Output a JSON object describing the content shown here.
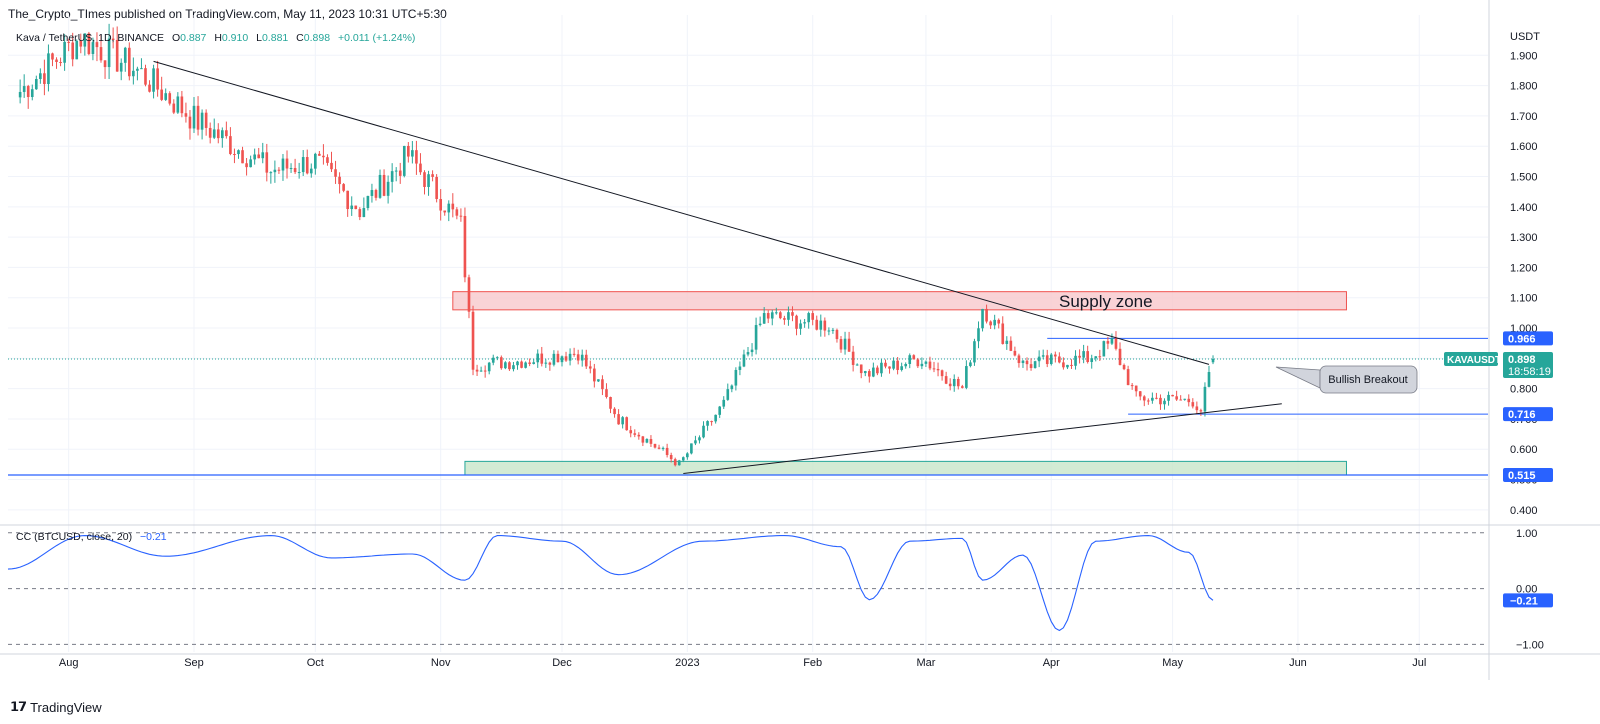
{
  "header": {
    "publisher": "The_Crypto_TImes published on TradingView.com, May 11, 2023 10:31 UTC+5:30"
  },
  "legend": {
    "symbol": "Kava / TetherUS, 1D, BINANCE",
    "o_label": "O",
    "o": "0.887",
    "h_label": "H",
    "h": "0.910",
    "l_label": "L",
    "l": "0.881",
    "c_label": "C",
    "c": "0.898",
    "change": "+0.011 (+1.24%)",
    "indicator": "CC (BTCUSD, close, 20)",
    "indicator_value": "−0.21"
  },
  "price_axis": {
    "unit": "USDT",
    "ticks": [
      "1.900",
      "1.800",
      "1.700",
      "1.600",
      "1.500",
      "1.400",
      "1.300",
      "1.200",
      "1.100",
      "1.000",
      "0.900",
      "0.800",
      "0.700",
      "0.600",
      "0.500",
      "0.400"
    ],
    "tick_values": [
      1.9,
      1.8,
      1.7,
      1.6,
      1.5,
      1.4,
      1.3,
      1.2,
      1.1,
      1.0,
      0.9,
      0.8,
      0.7,
      0.6,
      0.5,
      0.4
    ],
    "badges": {
      "level_966": "0.966",
      "symbol": "KAVAUSDT",
      "last": "0.898",
      "countdown": "18:58:19",
      "level_716": "0.716",
      "level_515": "0.515"
    }
  },
  "indicator_axis": {
    "ticks": [
      "1.00",
      "0.00",
      "−1.00"
    ],
    "tick_values": [
      1,
      0,
      -1
    ],
    "current": "−0.21"
  },
  "time_axis": {
    "labels": [
      "Aug",
      "Sep",
      "Oct",
      "Nov",
      "Dec",
      "2023",
      "Feb",
      "Mar",
      "Apr",
      "May",
      "Jun",
      "Jul"
    ],
    "dates": [
      "2022-08-01",
      "2022-09-01",
      "2022-10-01",
      "2022-11-01",
      "2022-12-01",
      "2023-01-01",
      "2023-02-01",
      "2023-03-01",
      "2023-04-01",
      "2023-05-01",
      "2023-06-01",
      "2023-07-01"
    ]
  },
  "annotations": {
    "supply_zone": "Supply zone",
    "bullish_breakout": "Bullish Breakout"
  },
  "colors": {
    "up": "#26a69a",
    "down": "#ef5350",
    "level_line": "#2962ff",
    "supply_fill": "#f8c8cc",
    "supply_border": "#ef5350",
    "demand_fill": "#c8e6c9",
    "demand_border": "#26a69a",
    "indicator_line": "#2962ff",
    "last_price": "#26a69a"
  },
  "chart_data": {
    "type": "candlestick",
    "symbol": "KAVAUSDT",
    "interval": "1D",
    "x_range": [
      "2022-07-17",
      "2023-07-18"
    ],
    "y_range": [
      0.35,
      2.0
    ],
    "grid": true,
    "key_closes": [
      {
        "date": "2022-07-20",
        "close": 1.78
      },
      {
        "date": "2022-08-04",
        "close": 1.96
      },
      {
        "date": "2022-08-18",
        "close": 1.85
      },
      {
        "date": "2022-09-01",
        "close": 1.69
      },
      {
        "date": "2022-09-20",
        "close": 1.52
      },
      {
        "date": "2022-10-01",
        "close": 1.55
      },
      {
        "date": "2022-10-12",
        "close": 1.39
      },
      {
        "date": "2022-10-24",
        "close": 1.57
      },
      {
        "date": "2022-11-06",
        "close": 1.34
      },
      {
        "date": "2022-11-09",
        "close": 0.88
      },
      {
        "date": "2022-11-20",
        "close": 0.89
      },
      {
        "date": "2022-12-05",
        "close": 0.92
      },
      {
        "date": "2022-12-15",
        "close": 0.7
      },
      {
        "date": "2022-12-30",
        "close": 0.55
      },
      {
        "date": "2023-01-10",
        "close": 0.75
      },
      {
        "date": "2023-01-20",
        "close": 1.04
      },
      {
        "date": "2023-02-05",
        "close": 1.01
      },
      {
        "date": "2023-02-14",
        "close": 0.85
      },
      {
        "date": "2023-02-28",
        "close": 0.9
      },
      {
        "date": "2023-03-10",
        "close": 0.8
      },
      {
        "date": "2023-03-15",
        "close": 1.07
      },
      {
        "date": "2023-03-25",
        "close": 0.88
      },
      {
        "date": "2023-04-10",
        "close": 0.9
      },
      {
        "date": "2023-04-16",
        "close": 0.95
      },
      {
        "date": "2023-04-22",
        "close": 0.77
      },
      {
        "date": "2023-05-06",
        "close": 0.76
      },
      {
        "date": "2023-05-08",
        "close": 0.73
      },
      {
        "date": "2023-05-11",
        "close": 0.898
      }
    ],
    "last_candle": {
      "date": "2023-05-11",
      "open": 0.887,
      "high": 0.91,
      "low": 0.881,
      "close": 0.898
    },
    "horizontal_levels": [
      0.966,
      0.716,
      0.515
    ],
    "zones": [
      {
        "name": "Supply zone",
        "from": "2022-11-04",
        "to": "2023-06-13",
        "low": 1.06,
        "high": 1.12
      },
      {
        "name": "demand",
        "from": "2022-11-07",
        "to": "2023-06-13",
        "low": 0.515,
        "high": 0.56
      }
    ],
    "trendlines": [
      {
        "from": {
          "date": "2022-08-22",
          "price": 1.88
        },
        "to": {
          "date": "2023-05-10",
          "price": 0.88
        }
      },
      {
        "from": {
          "date": "2022-12-31",
          "price": 0.52
        },
        "to": {
          "date": "2023-05-28",
          "price": 0.75
        }
      }
    ],
    "indicator": {
      "name": "CC (BTCUSD, close, 20)",
      "y_range": [
        -1.1,
        1.05
      ],
      "key_points": [
        {
          "date": "2022-07-17",
          "value": 0.35
        },
        {
          "date": "2022-08-05",
          "value": 0.95
        },
        {
          "date": "2022-08-25",
          "value": 0.58
        },
        {
          "date": "2022-09-20",
          "value": 0.95
        },
        {
          "date": "2022-10-05",
          "value": 0.55
        },
        {
          "date": "2022-10-25",
          "value": 0.62
        },
        {
          "date": "2022-11-07",
          "value": 0.15
        },
        {
          "date": "2022-11-15",
          "value": 0.95
        },
        {
          "date": "2022-12-01",
          "value": 0.85
        },
        {
          "date": "2022-12-15",
          "value": 0.25
        },
        {
          "date": "2023-01-05",
          "value": 0.85
        },
        {
          "date": "2023-01-25",
          "value": 0.95
        },
        {
          "date": "2023-02-08",
          "value": 0.75
        },
        {
          "date": "2023-02-15",
          "value": -0.2
        },
        {
          "date": "2023-02-25",
          "value": 0.85
        },
        {
          "date": "2023-03-10",
          "value": 0.9
        },
        {
          "date": "2023-03-15",
          "value": 0.15
        },
        {
          "date": "2023-03-25",
          "value": 0.6
        },
        {
          "date": "2023-04-03",
          "value": -0.75
        },
        {
          "date": "2023-04-12",
          "value": 0.85
        },
        {
          "date": "2023-04-25",
          "value": 0.95
        },
        {
          "date": "2023-05-05",
          "value": 0.65
        },
        {
          "date": "2023-05-11",
          "value": -0.21
        }
      ]
    }
  }
}
